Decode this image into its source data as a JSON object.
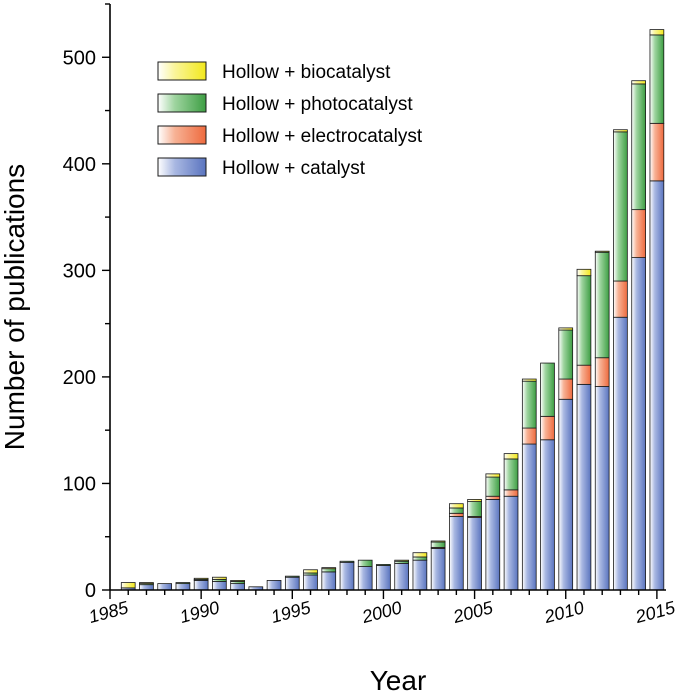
{
  "chart_data": {
    "type": "bar",
    "stacked": true,
    "xlabel": "Year",
    "ylabel": "Number of publications",
    "ylim": [
      0,
      550
    ],
    "yticks": [
      0,
      100,
      200,
      300,
      400,
      500
    ],
    "xticks": [
      1985,
      1990,
      1995,
      2000,
      2005,
      2010,
      2015
    ],
    "xlim": [
      1985,
      2015.5
    ],
    "grid": false,
    "legend_position": "top-left",
    "categories": [
      1986,
      1987,
      1988,
      1989,
      1990,
      1991,
      1992,
      1993,
      1994,
      1995,
      1996,
      1997,
      1998,
      1999,
      2000,
      2001,
      2002,
      2003,
      2004,
      2005,
      2006,
      2007,
      2008,
      2009,
      2010,
      2011,
      2012,
      2013,
      2014,
      2015
    ],
    "series": [
      {
        "name": "Hollow + catalyst",
        "color": "#6b85c8",
        "values": [
          2,
          5,
          6,
          6,
          9,
          8,
          6,
          3,
          9,
          12,
          14,
          17,
          26,
          22,
          23,
          25,
          28,
          39,
          69,
          68,
          85,
          88,
          137,
          141,
          179,
          193,
          191,
          256,
          312,
          384
        ]
      },
      {
        "name": "Hollow + electrocatalyst",
        "color": "#f0805a",
        "values": [
          0,
          0,
          0,
          0,
          0,
          0,
          0,
          0,
          0,
          0,
          0,
          0,
          0,
          0,
          0,
          0,
          0,
          1,
          3,
          1,
          3,
          6,
          15,
          22,
          19,
          18,
          27,
          34,
          45,
          54
        ]
      },
      {
        "name": "Hollow + photocatalyst",
        "color": "#49a84e",
        "values": [
          0,
          1,
          0,
          1,
          1,
          2,
          2,
          0,
          0,
          1,
          2,
          3,
          1,
          6,
          1,
          2,
          3,
          5,
          5,
          14,
          18,
          29,
          44,
          50,
          46,
          84,
          99,
          140,
          118,
          83
        ]
      },
      {
        "name": "Hollow + biocatalyst",
        "color": "#f5ee2a",
        "values": [
          5,
          1,
          0,
          0,
          1,
          2,
          1,
          0,
          0,
          0,
          3,
          1,
          0,
          0,
          0,
          1,
          4,
          1,
          4,
          2,
          3,
          5,
          2,
          0,
          2,
          6,
          1,
          2,
          3,
          5
        ]
      }
    ]
  }
}
